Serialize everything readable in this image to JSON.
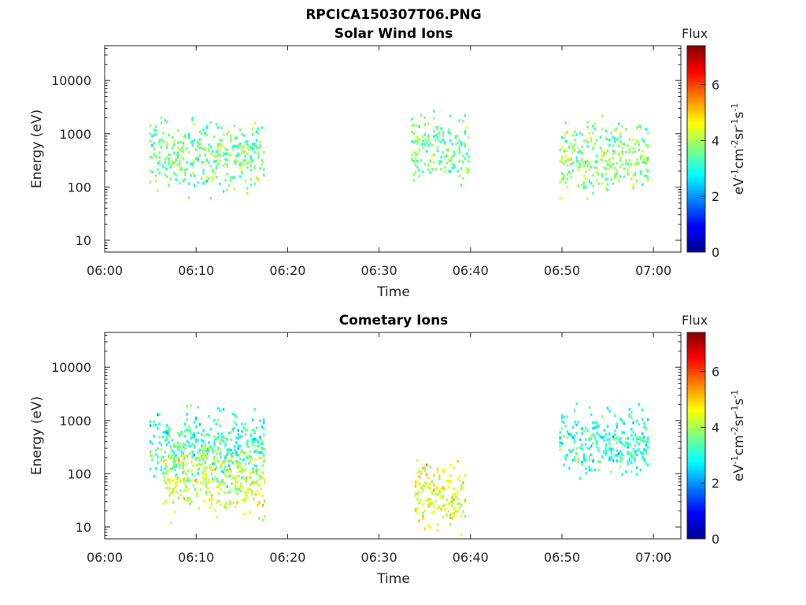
{
  "figure": {
    "title": "RPCICA150307T06.PNG"
  },
  "chart_data": [
    {
      "type": "heatmap",
      "title": "Solar Wind Ions",
      "xlabel": "Time",
      "ylabel": "Energy (eV)",
      "x_ticks": [
        "06:00",
        "06:10",
        "06:20",
        "06:30",
        "06:40",
        "06:50",
        "07:00"
      ],
      "x_range_minutes": [
        0,
        63
      ],
      "y_scale": "log",
      "y_ticks": [
        {
          "value": 10,
          "label": "10"
        },
        {
          "value": 100,
          "label": "100"
        },
        {
          "value": 1000,
          "label": "1000"
        },
        {
          "value": 10000,
          "label": "10000"
        }
      ],
      "y_range": [
        6,
        45000
      ],
      "colorbar": {
        "label": "Flux",
        "unit_label": "eV-1cm-2sr-1s-1",
        "range": [
          0,
          7.4
        ],
        "ticks": [
          "0",
          "2",
          "4",
          "6"
        ],
        "colormap": "jet"
      },
      "observation_windows_minutes": [
        [
          5,
          17.5
        ],
        [
          33.6,
          40
        ],
        [
          49.8,
          59.5
        ]
      ],
      "bands": [
        {
          "t_start": 5.0,
          "t_end": 17.5,
          "e_center": 400,
          "flux": 3.6
        },
        {
          "t_start": 33.6,
          "t_end": 40.0,
          "e_center": 500,
          "flux": 3.5
        },
        {
          "t_start": 49.8,
          "t_end": 59.5,
          "e_center": 350,
          "flux": 3.8
        }
      ]
    },
    {
      "type": "heatmap",
      "title": "Cometary Ions",
      "xlabel": "Time",
      "ylabel": "Energy (eV)",
      "x_ticks": [
        "06:00",
        "06:10",
        "06:20",
        "06:30",
        "06:40",
        "06:50",
        "07:00"
      ],
      "x_range_minutes": [
        0,
        63
      ],
      "y_scale": "log",
      "y_ticks": [
        {
          "value": 10,
          "label": "10"
        },
        {
          "value": 100,
          "label": "100"
        },
        {
          "value": 1000,
          "label": "1000"
        },
        {
          "value": 10000,
          "label": "10000"
        }
      ],
      "y_range": [
        6,
        45000
      ],
      "colorbar": {
        "label": "Flux",
        "unit_label": "eV-1cm-2sr-1s-1",
        "range": [
          0,
          7.4
        ],
        "ticks": [
          "0",
          "2",
          "4",
          "6"
        ],
        "colormap": "jet"
      },
      "observation_windows_minutes": [
        [
          5,
          17.5
        ],
        [
          33.6,
          40
        ],
        [
          49.8,
          59.5
        ]
      ],
      "bands": [
        {
          "t_start": 5.0,
          "t_end": 17.5,
          "e_center": 350,
          "flux": 3.2
        },
        {
          "t_start": 6.5,
          "t_end": 17.5,
          "e_center": 80,
          "flux": 4.2
        },
        {
          "t_start": 34.0,
          "t_end": 39.5,
          "e_center": 40,
          "flux": 4.5
        },
        {
          "t_start": 49.8,
          "t_end": 59.5,
          "e_center": 400,
          "flux": 3.1
        }
      ]
    }
  ]
}
